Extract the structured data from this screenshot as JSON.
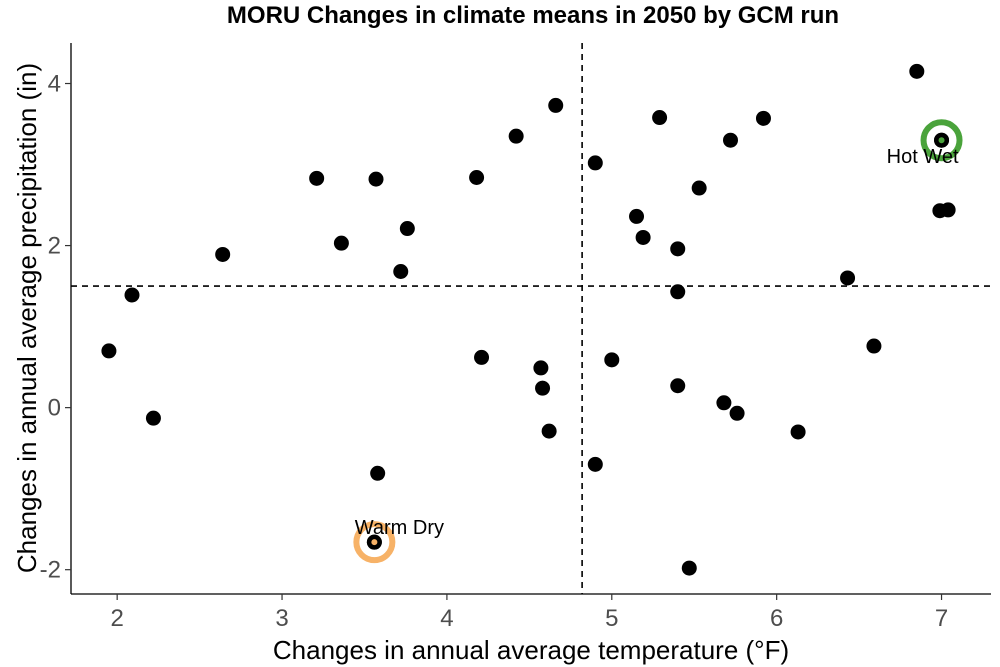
{
  "chart_data": {
    "type": "scatter",
    "title": "MORU Changes in climate means in 2050 by GCM run",
    "xlabel": "Changes in annual average temperature (°F)",
    "ylabel": "Changes in annual average precipitation (in)",
    "xlim": [
      1.72,
      7.3
    ],
    "ylim": [
      -2.3,
      4.5
    ],
    "xticks": [
      2,
      3,
      4,
      5,
      6,
      7
    ],
    "yticks": [
      -2,
      0,
      2,
      4
    ],
    "grid": false,
    "legend": "none",
    "reference_lines": {
      "x": 4.82,
      "y": 1.5
    },
    "point_color": "#000000",
    "points": [
      {
        "x": 1.95,
        "y": 0.7
      },
      {
        "x": 2.09,
        "y": 1.39
      },
      {
        "x": 2.22,
        "y": -0.13
      },
      {
        "x": 2.64,
        "y": 1.89
      },
      {
        "x": 3.21,
        "y": 2.83
      },
      {
        "x": 3.36,
        "y": 2.03
      },
      {
        "x": 3.57,
        "y": 2.82
      },
      {
        "x": 3.58,
        "y": -0.81
      },
      {
        "x": 3.72,
        "y": 1.68
      },
      {
        "x": 3.76,
        "y": 2.21
      },
      {
        "x": 3.56,
        "y": -1.66
      },
      {
        "x": 4.18,
        "y": 2.84
      },
      {
        "x": 4.21,
        "y": 0.62
      },
      {
        "x": 4.42,
        "y": 3.35
      },
      {
        "x": 4.57,
        "y": 0.49
      },
      {
        "x": 4.58,
        "y": 0.24
      },
      {
        "x": 4.62,
        "y": -0.29
      },
      {
        "x": 4.66,
        "y": 3.73
      },
      {
        "x": 4.9,
        "y": 3.02
      },
      {
        "x": 4.9,
        "y": -0.7
      },
      {
        "x": 5.0,
        "y": 0.59
      },
      {
        "x": 5.15,
        "y": 2.36
      },
      {
        "x": 5.19,
        "y": 2.1
      },
      {
        "x": 5.29,
        "y": 3.58
      },
      {
        "x": 5.4,
        "y": 1.96
      },
      {
        "x": 5.4,
        "y": 1.43
      },
      {
        "x": 5.4,
        "y": 0.27
      },
      {
        "x": 5.47,
        "y": -1.98
      },
      {
        "x": 5.53,
        "y": 2.71
      },
      {
        "x": 5.68,
        "y": 0.06
      },
      {
        "x": 5.72,
        "y": 3.3
      },
      {
        "x": 5.76,
        "y": -0.07
      },
      {
        "x": 5.92,
        "y": 3.57
      },
      {
        "x": 6.13,
        "y": -0.3
      },
      {
        "x": 6.43,
        "y": 1.6
      },
      {
        "x": 6.59,
        "y": 0.76
      },
      {
        "x": 6.85,
        "y": 4.15
      },
      {
        "x": 7.0,
        "y": 3.3
      },
      {
        "x": 6.99,
        "y": 2.43
      },
      {
        "x": 7.04,
        "y": 2.44
      }
    ],
    "highlights": [
      {
        "label": "Hot Wet",
        "x": 7.0,
        "y": 3.3,
        "color": "#4aa33b"
      },
      {
        "label": "Warm Dry",
        "x": 3.56,
        "y": -1.66,
        "color": "#f7b267"
      }
    ]
  }
}
